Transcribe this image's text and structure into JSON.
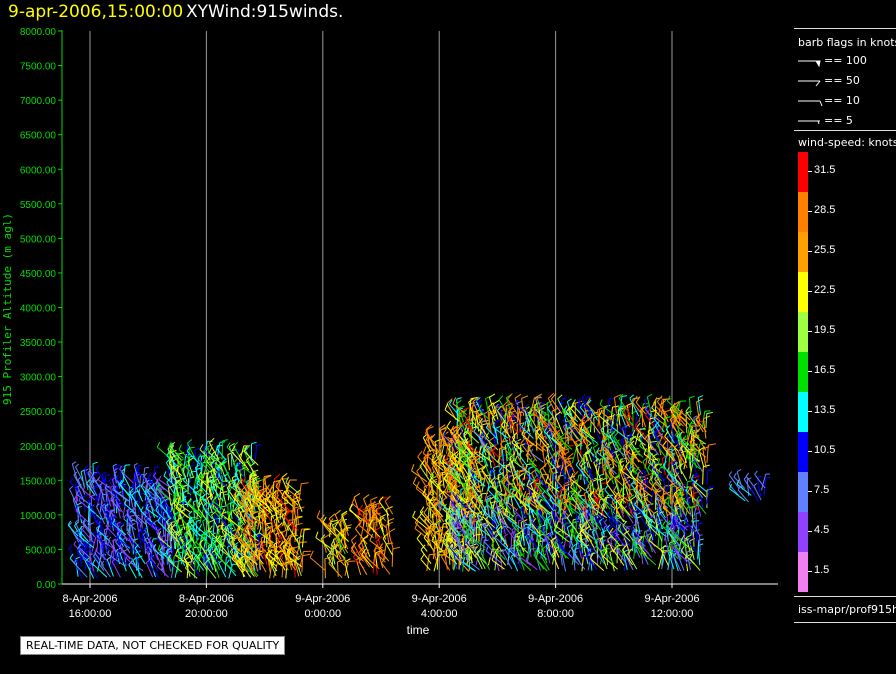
{
  "header": {
    "date": "9-apr-2006,15:00:00",
    "name": "XYWind:915winds."
  },
  "quality_note": "REAL-TIME DATA, NOT CHECKED FOR QUALITY",
  "legend": {
    "barb_title": "barb flags in knots",
    "barb_entries": [
      "== 100",
      "== 50",
      "== 10",
      "== 5"
    ],
    "speed_title": "wind-speed: knots",
    "source": "iss-mapr/prof915h"
  },
  "chart_data": {
    "type": "scatter",
    "subtype": "wind-barb time-height plot",
    "ylabel": "915 Profiler Altitude (m agl)",
    "xlabel": "time",
    "ylim": [
      0,
      8000
    ],
    "y_ticks": [
      "0.00",
      "500.00",
      "1000.00",
      "1500.00",
      "2000.00",
      "2500.00",
      "3000.00",
      "3500.00",
      "4000.00",
      "4500.00",
      "5000.00",
      "5500.00",
      "6000.00",
      "6500.00",
      "7000.00",
      "7500.00",
      "8000.00"
    ],
    "x_ticks": [
      {
        "date": "8-Apr-2006",
        "time": "16:00:00",
        "hour": 16
      },
      {
        "date": "8-Apr-2006",
        "time": "20:00:00",
        "hour": 20
      },
      {
        "date": "9-Apr-2006",
        "time": "0:00:00",
        "hour": 24
      },
      {
        "date": "9-Apr-2006",
        "time": "4:00:00",
        "hour": 28
      },
      {
        "date": "9-Apr-2006",
        "time": "8:00:00",
        "hour": 32
      },
      {
        "date": "9-Apr-2006",
        "time": "12:00:00",
        "hour": 36
      }
    ],
    "x_range_hours": [
      15.0,
      38.5
    ],
    "grid": "vertical lines at x ticks",
    "colorbar": {
      "label": "wind-speed: knots",
      "levels": [
        "31.5",
        "28.5",
        "25.5",
        "22.5",
        "19.5",
        "16.5",
        "13.5",
        "10.5",
        "7.5",
        "4.5",
        "1.5"
      ],
      "colors": [
        "#ff0000",
        "#ff8000",
        "#ffa000",
        "#ffff00",
        "#a0ff40",
        "#00e000",
        "#00ffff",
        "#0000ff",
        "#6080ff",
        "#9040ff",
        "#f080f0"
      ]
    },
    "clusters": [
      {
        "t0": 15.6,
        "t1": 19.0,
        "h0": 100,
        "h1": 1500,
        "speed_min": 4,
        "speed_max": 14
      },
      {
        "t0": 18.8,
        "t1": 21.8,
        "h0": 100,
        "h1": 1800,
        "speed_min": 11,
        "speed_max": 23
      },
      {
        "t0": 21.3,
        "t1": 23.3,
        "h0": 100,
        "h1": 1300,
        "speed_min": 20,
        "speed_max": 31
      },
      {
        "t0": 24.1,
        "t1": 24.9,
        "h0": 100,
        "h1": 800,
        "speed_min": 17,
        "speed_max": 29
      },
      {
        "t0": 25.3,
        "t1": 26.5,
        "h0": 150,
        "h1": 1050,
        "speed_min": 22,
        "speed_max": 31
      },
      {
        "t0": 27.6,
        "t1": 29.2,
        "h0": 200,
        "h1": 2000,
        "speed_min": 20,
        "speed_max": 30
      },
      {
        "t0": 28.5,
        "t1": 37.0,
        "h0": 200,
        "h1": 1000,
        "speed_min": 3,
        "speed_max": 24
      },
      {
        "t0": 28.6,
        "t1": 37.2,
        "h0": 1000,
        "h1": 2500,
        "speed_min": 8,
        "speed_max": 31
      },
      {
        "t0": 38.3,
        "t1": 39.2,
        "h0": 1200,
        "h1": 1400,
        "speed_min": 6,
        "speed_max": 13
      }
    ]
  }
}
